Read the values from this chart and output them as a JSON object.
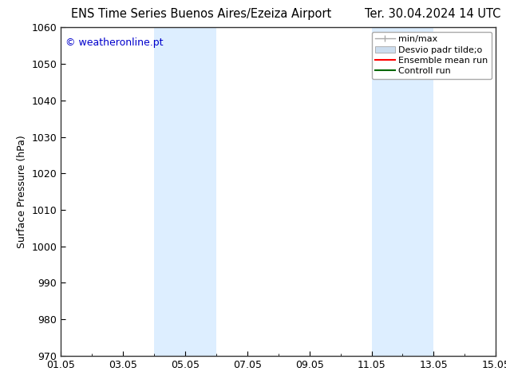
{
  "title_left": "ENS Time Series Buenos Aires/Ezeiza Airport",
  "title_right": "Ter. 30.04.2024 14 UTC",
  "ylabel": "Surface Pressure (hPa)",
  "watermark": "© weatheronline.pt",
  "watermark_color": "#0000cc",
  "ylim": [
    970,
    1060
  ],
  "yticks": [
    970,
    980,
    990,
    1000,
    1010,
    1020,
    1030,
    1040,
    1050,
    1060
  ],
  "xtick_labels": [
    "01.05",
    "03.05",
    "05.05",
    "07.05",
    "09.05",
    "11.05",
    "13.05",
    "15.05"
  ],
  "xmin": 0.0,
  "xmax": 14.0,
  "xtick_positions": [
    0,
    2,
    4,
    6,
    8,
    10,
    12,
    14
  ],
  "shade_bands": [
    {
      "xmin": 3.0,
      "xmax": 5.0,
      "color": "#ddeeff"
    },
    {
      "xmin": 10.0,
      "xmax": 12.0,
      "color": "#ddeeff"
    }
  ],
  "legend_entries": [
    {
      "label": "min/max"
    },
    {
      "label": "Desvio padr tilde;o"
    },
    {
      "label": "Ensemble mean run"
    },
    {
      "label": "Controll run"
    }
  ],
  "minmax_color": "#aaaaaa",
  "std_color": "#ccddee",
  "ensemble_color": "#ff0000",
  "control_color": "#006600",
  "bg_color": "#ffffff",
  "title_fontsize": 10.5,
  "tick_fontsize": 9,
  "ylabel_fontsize": 9,
  "watermark_fontsize": 9,
  "legend_fontsize": 8
}
